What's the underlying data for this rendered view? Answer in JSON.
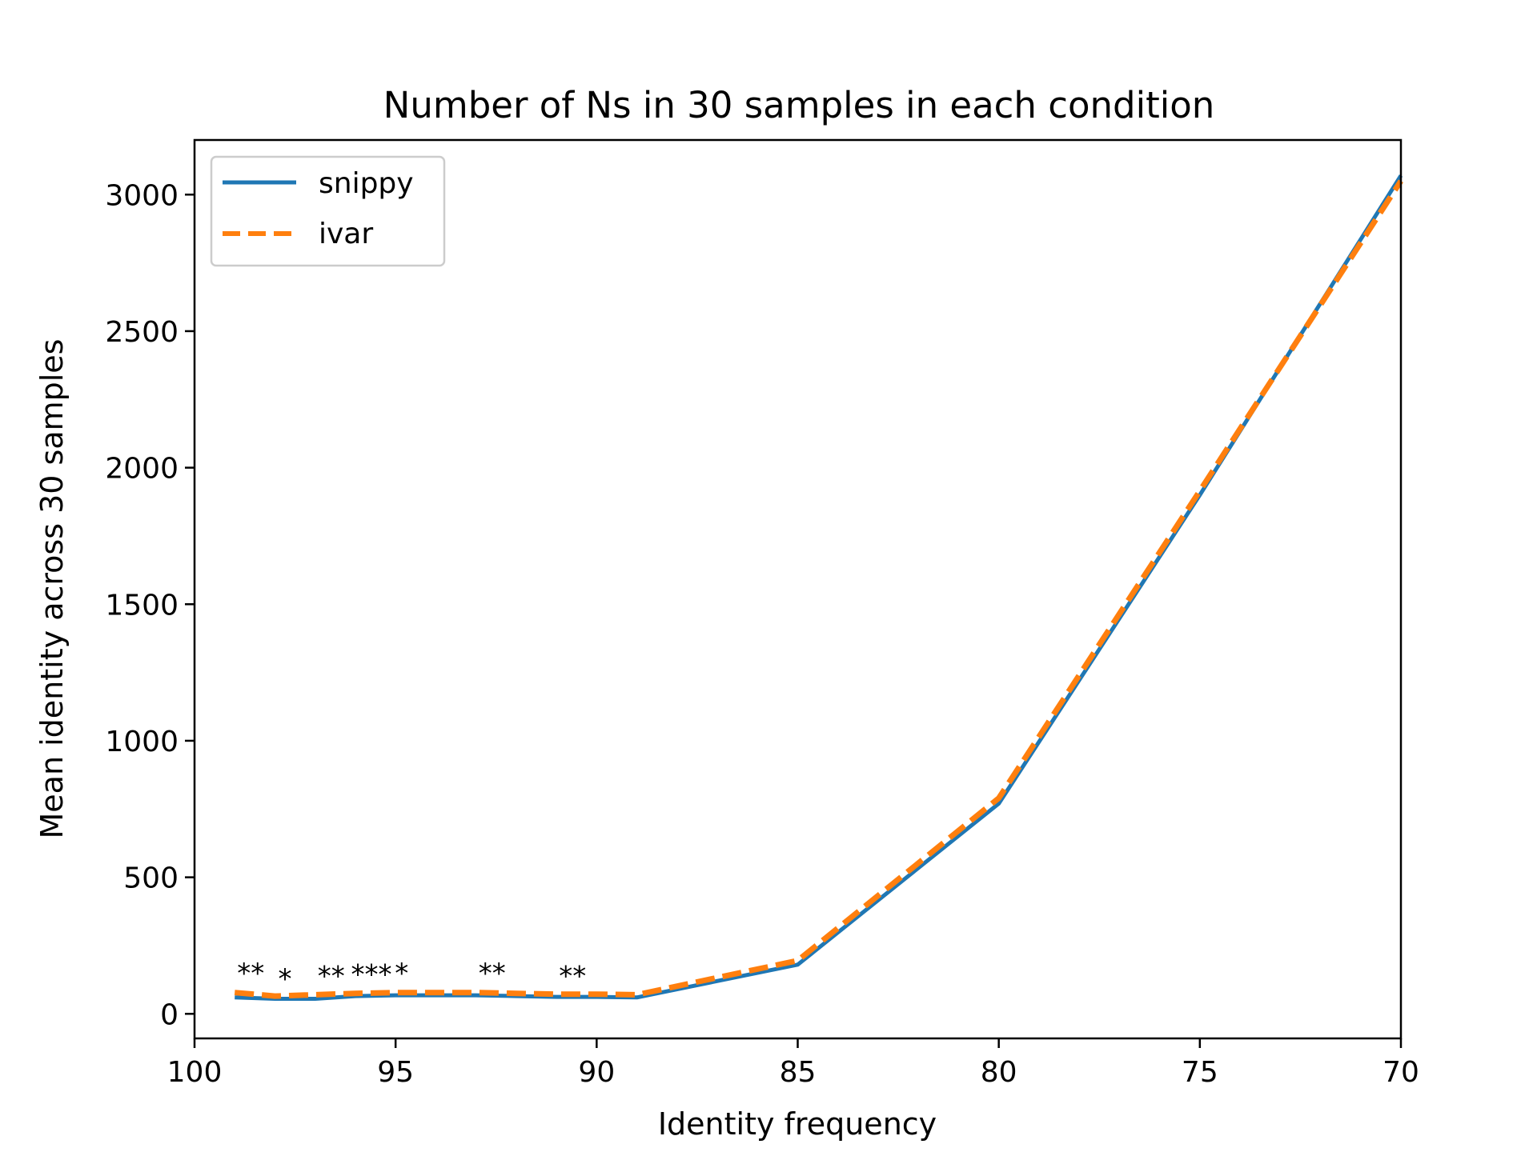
{
  "chart_data": {
    "type": "line",
    "title": "Number of Ns in 30 samples in each condition",
    "xlabel": "Identity frequency",
    "ylabel": "Mean identity across 30 samples",
    "xlim": [
      100,
      70
    ],
    "ylim": [
      -90,
      3200
    ],
    "x_inverted": true,
    "xticks": [
      100,
      95,
      90,
      85,
      80,
      75,
      70
    ],
    "yticks": [
      0,
      500,
      1000,
      1500,
      2000,
      2500,
      3000
    ],
    "grid": false,
    "legend_position": "top-left",
    "series": [
      {
        "name": "snippy",
        "color": "#1f77b4",
        "style": "solid",
        "x": [
          99,
          98,
          97,
          96,
          95,
          94,
          93,
          92,
          91,
          90,
          89,
          85,
          80,
          75,
          70
        ],
        "y": [
          60,
          55,
          55,
          65,
          68,
          68,
          68,
          65,
          62,
          62,
          60,
          180,
          770,
          1900,
          3070
        ]
      },
      {
        "name": "ivar",
        "color": "#ff7f0e",
        "style": "dashed",
        "x": [
          99,
          98,
          97,
          96,
          95,
          94,
          93,
          92,
          91,
          90,
          89,
          85,
          80,
          75,
          70
        ],
        "y": [
          78,
          65,
          70,
          75,
          78,
          78,
          78,
          75,
          72,
          72,
          70,
          195,
          790,
          1915,
          3050
        ]
      }
    ],
    "annotations": [
      {
        "text": "**",
        "x": 98.6,
        "y": 115
      },
      {
        "text": "*",
        "x": 97.75,
        "y": 95
      },
      {
        "text": "**",
        "x": 96.6,
        "y": 105
      },
      {
        "text": "***",
        "x": 95.6,
        "y": 110
      },
      {
        "text": "*",
        "x": 94.85,
        "y": 115
      },
      {
        "text": "**",
        "x": 92.6,
        "y": 115
      },
      {
        "text": "**",
        "x": 90.6,
        "y": 105
      }
    ]
  }
}
